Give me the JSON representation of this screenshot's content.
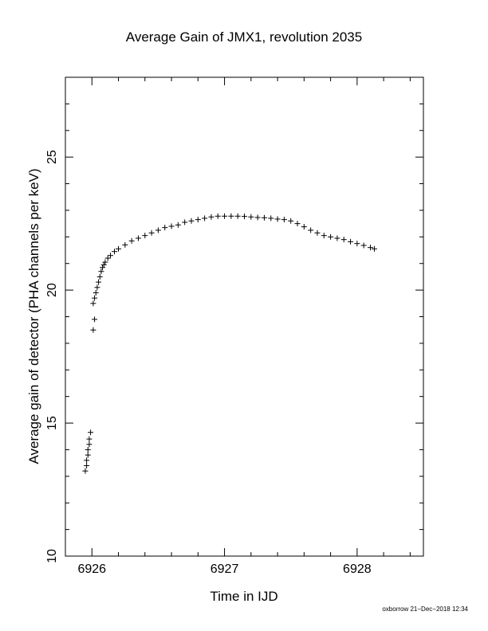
{
  "chart_data": {
    "type": "scatter",
    "title": "Average Gain of JMX1, revolution 2035",
    "xlabel": "Time in IJD",
    "ylabel": "Average gain of detector (PHA channels per keV)",
    "xlim": [
      6925.8,
      6928.5
    ],
    "ylim": [
      10,
      28
    ],
    "x_ticks": [
      6926,
      6927,
      6928
    ],
    "x_tick_labels": [
      "6926",
      "6927",
      "6928"
    ],
    "y_ticks": [
      10,
      15,
      20,
      25
    ],
    "y_tick_labels": [
      "10",
      "15",
      "20",
      "25"
    ],
    "grid": false,
    "marker": "plus",
    "marker_color": "#000000",
    "series": [
      {
        "x": [
          6925.95,
          6925.96,
          6925.96,
          6925.97,
          6925.97,
          6925.98,
          6925.98,
          6925.99,
          6926.01,
          6926.02,
          6926.01,
          6926.02,
          6926.03,
          6926.04,
          6926.05,
          6926.06,
          6926.07,
          6926.08,
          6926.09,
          6926.1,
          6926.12,
          6926.14,
          6926.17,
          6926.2,
          6926.25,
          6926.3,
          6926.35,
          6926.4,
          6926.45,
          6926.5,
          6926.55,
          6926.6,
          6926.65,
          6926.7,
          6926.75,
          6926.8,
          6926.85,
          6926.9,
          6926.95,
          6927.0,
          6927.05,
          6927.1,
          6927.15,
          6927.2,
          6927.25,
          6927.3,
          6927.35,
          6927.4,
          6927.45,
          6927.5,
          6927.55,
          6927.6,
          6927.65,
          6927.7,
          6927.75,
          6927.8,
          6927.85,
          6927.9,
          6927.95,
          6928.0,
          6928.05,
          6928.1,
          6928.13
        ],
        "y": [
          13.2,
          13.4,
          13.6,
          13.8,
          14.0,
          14.2,
          14.4,
          14.65,
          18.5,
          18.9,
          19.5,
          19.7,
          19.9,
          20.1,
          20.3,
          20.5,
          20.7,
          20.85,
          20.95,
          21.05,
          21.2,
          21.3,
          21.45,
          21.55,
          21.7,
          21.85,
          21.95,
          22.05,
          22.15,
          22.25,
          22.35,
          22.4,
          22.45,
          22.55,
          22.6,
          22.65,
          22.7,
          22.75,
          22.78,
          22.78,
          22.78,
          22.78,
          22.77,
          22.75,
          22.73,
          22.72,
          22.7,
          22.67,
          22.65,
          22.6,
          22.5,
          22.38,
          22.25,
          22.15,
          22.05,
          22.0,
          21.95,
          21.9,
          21.82,
          21.75,
          21.68,
          21.6,
          21.55
        ]
      }
    ]
  },
  "footer": {
    "text": "oxborrow 21−Dec−2018 12:34"
  }
}
